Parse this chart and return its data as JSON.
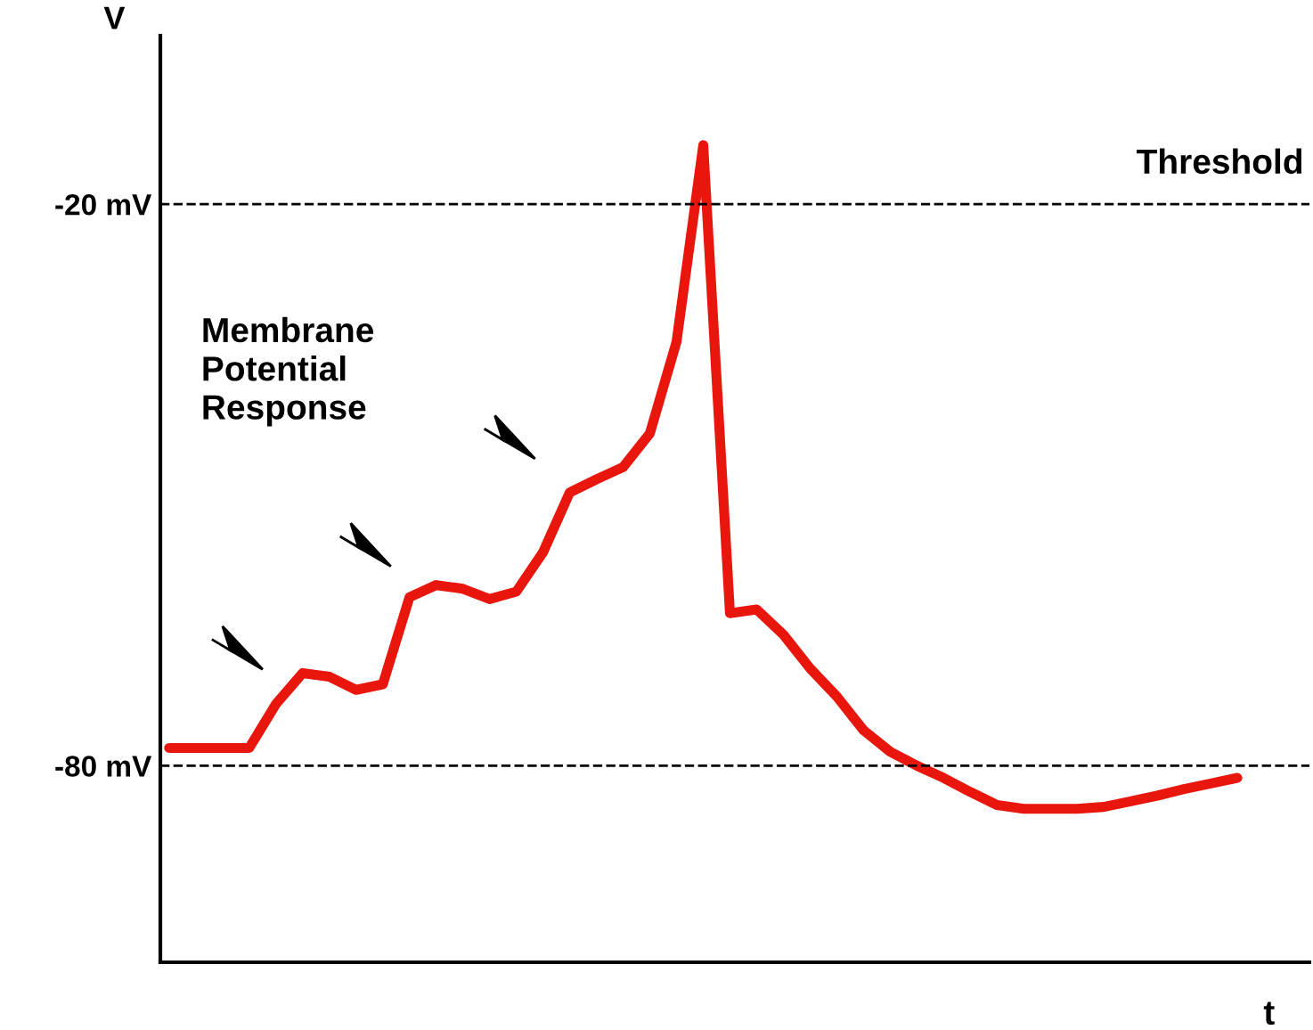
{
  "chart_data": {
    "type": "line",
    "xlabel": "t",
    "ylabel": "V",
    "categories": [
      null,
      null,
      null,
      null,
      null,
      null,
      null,
      null,
      null,
      null,
      null,
      null,
      null,
      null,
      null,
      null,
      null,
      null,
      null,
      null,
      null,
      null,
      null,
      null,
      null,
      null,
      null,
      null,
      null,
      null,
      null,
      null,
      null,
      null,
      null,
      null,
      null,
      null,
      null,
      null,
      null
    ],
    "series": [
      {
        "color": "#e8160c",
        "values": [
          -78.1,
          -78.1,
          -78.1,
          -78.1,
          -73.4,
          -70.1,
          -70.5,
          -71.9,
          -71.3,
          -62.0,
          -60.7,
          -61.1,
          -62.2,
          -61.4,
          -57.2,
          -50.8,
          -49.4,
          -48.1,
          -44.5,
          -34.7,
          -13.7,
          -63.7,
          -63.3,
          -66.0,
          -69.6,
          -72.6,
          -76.2,
          -78.5,
          -80.0,
          -81.3,
          -82.8,
          -84.2,
          -84.6,
          -84.6,
          -84.6,
          -84.4,
          -83.8,
          -83.2,
          -82.5,
          -81.9,
          -81.3
        ]
      }
    ],
    "ylim": [
      -101,
      -2
    ],
    "yticks": [
      {
        "value": -20,
        "label": "-20 mV"
      },
      {
        "value": -80,
        "label": "-80 mV"
      }
    ],
    "ref_lines": [
      {
        "axis": "y",
        "value": -20,
        "label": "Threshold",
        "color": "#000000",
        "line_style": "dashed"
      },
      {
        "axis": "y",
        "value": -80,
        "color": "#000000",
        "line_style": "dashed"
      }
    ],
    "annotations": [
      "Membrane\nPotential\nResponse"
    ],
    "tick_labels": "y",
    "grid": false,
    "marker": "none",
    "line_style": "solid"
  }
}
